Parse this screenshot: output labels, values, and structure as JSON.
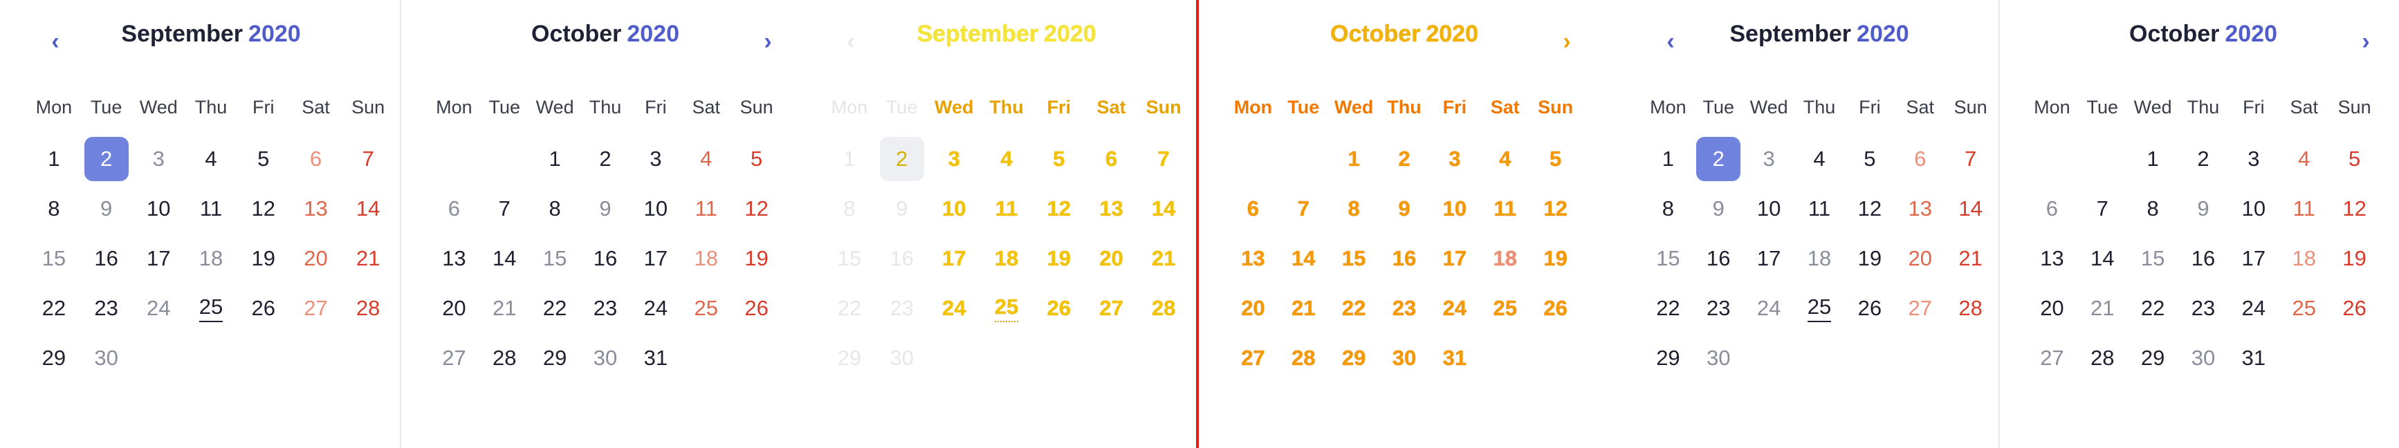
{
  "weekday_labels": [
    "Mon",
    "Tue",
    "Wed",
    "Thu",
    "Fri",
    "Sat",
    "Sun"
  ],
  "panels": [
    {
      "id": "p1",
      "month": "September",
      "year": "2020",
      "variant": "normal",
      "nav": "prev",
      "nav_symbol": "‹",
      "selected": 2,
      "today": 25,
      "first_col": 1,
      "days": 30
    },
    {
      "id": "p2",
      "month": "October",
      "year": "2020",
      "variant": "normal",
      "nav": "next",
      "nav_symbol": "›",
      "selected": null,
      "today": null,
      "first_col": 3,
      "days": 31
    },
    {
      "id": "p3",
      "month": "September",
      "year": "2020",
      "variant": "ghost",
      "nav": "prev",
      "nav_symbol": "‹",
      "selected": 2,
      "today": 25,
      "first_col": 1,
      "days": 30
    },
    {
      "id": "p4",
      "month": "October",
      "year": "2020",
      "variant": "orange",
      "nav": "next",
      "nav_symbol": "›",
      "selected": null,
      "today": null,
      "first_col": 3,
      "days": 31
    },
    {
      "id": "p5",
      "month": "September",
      "year": "2020",
      "variant": "normal",
      "nav": "prev",
      "nav_symbol": "‹",
      "selected": 2,
      "today": 25,
      "first_col": 1,
      "days": 30
    },
    {
      "id": "p6",
      "month": "October",
      "year": "2020",
      "variant": "normal",
      "nav": "next",
      "nav_symbol": "›",
      "selected": null,
      "today": null,
      "first_col": 3,
      "days": 31
    }
  ],
  "colors": {
    "accent": "#4f5cc9",
    "selected_bg": "#6f82de",
    "weekend_sun": "#d93b2a",
    "weekend_sat": "#e0664a",
    "divider_red": "#e41b1b"
  }
}
